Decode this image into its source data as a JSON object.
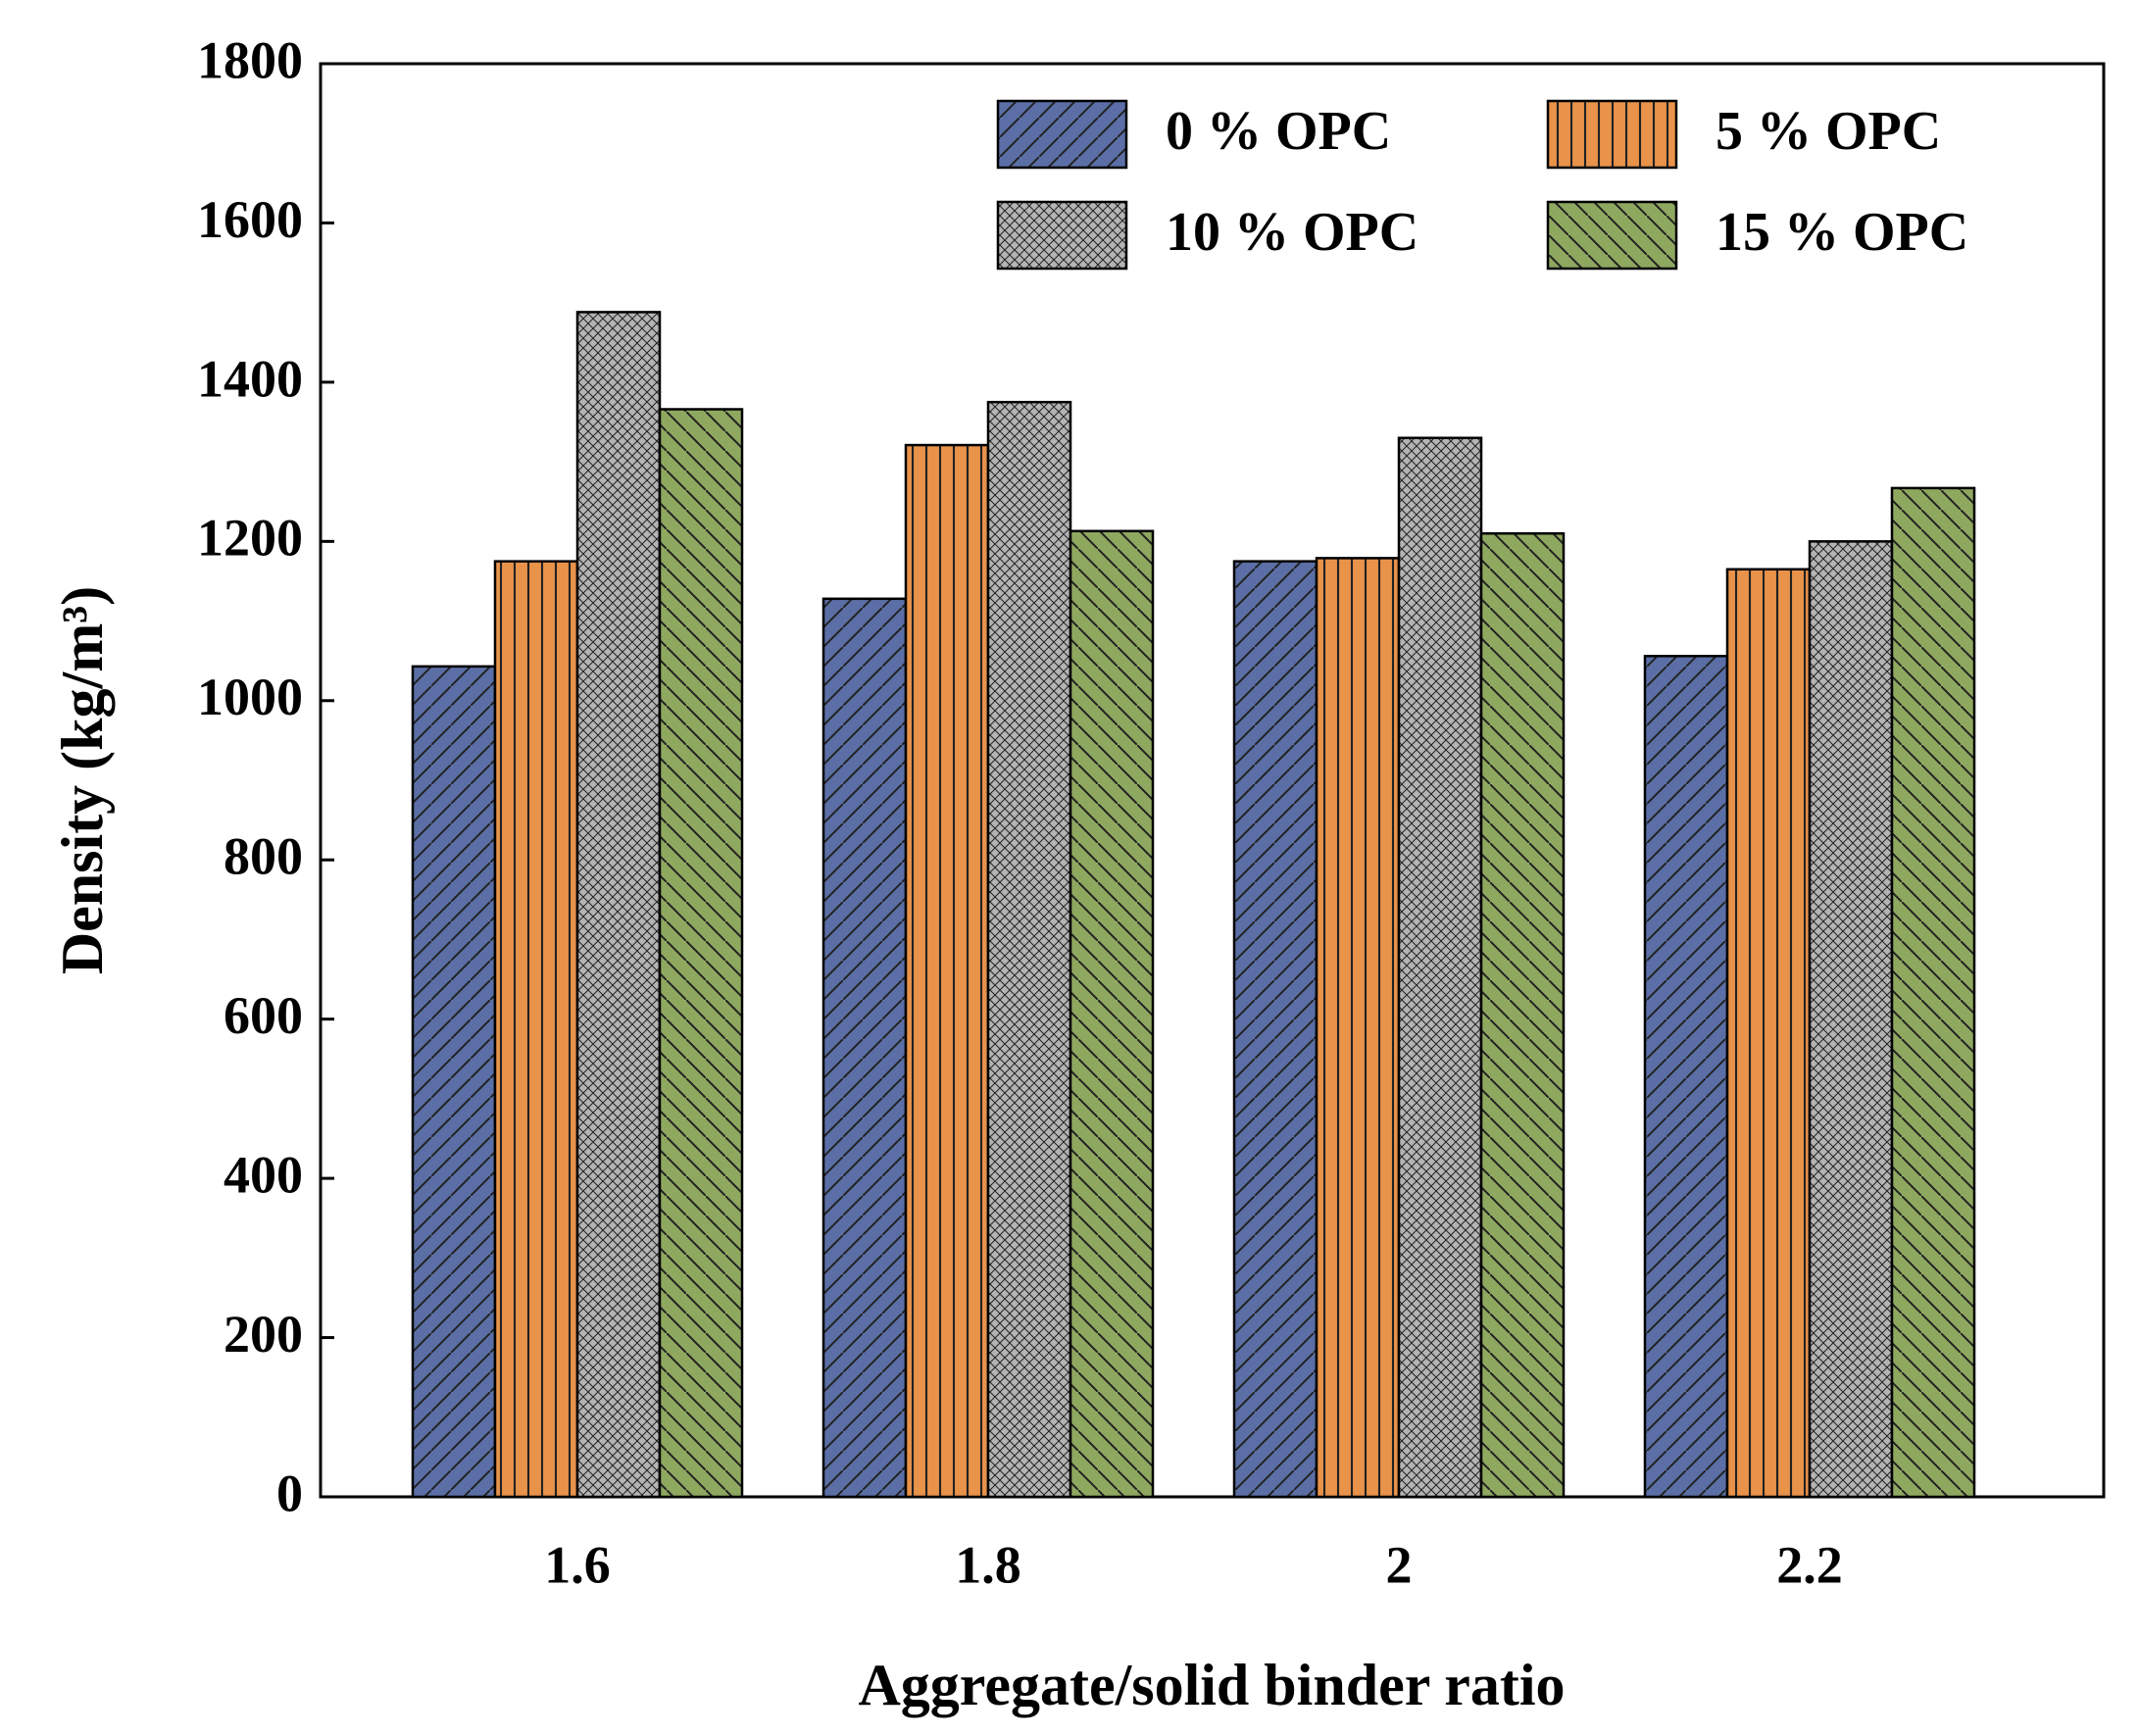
{
  "chart_data": {
    "type": "bar",
    "x_label": "Aggregate/solid binder ratio",
    "y_label": "Density (kg/m³)",
    "categories": [
      "1.6",
      "1.8",
      "2",
      "2.2"
    ],
    "series": [
      {
        "name": "0 % OPC",
        "color": "#5b6fa6",
        "pattern": "forward-diagonal",
        "values": [
          1043,
          1128,
          1175,
          1056
        ]
      },
      {
        "name": "5 % OPC",
        "color": "#e8924a",
        "pattern": "vertical",
        "values": [
          1175,
          1321,
          1179,
          1165
        ]
      },
      {
        "name": "10 % OPC",
        "color": "#b4b4b4",
        "pattern": "crosshatch",
        "values": [
          1488,
          1375,
          1330,
          1200
        ]
      },
      {
        "name": "15 % OPC",
        "color": "#8fa860",
        "pattern": "backward-diagonal",
        "values": [
          1366,
          1213,
          1210,
          1267
        ]
      }
    ],
    "ylim": [
      0,
      1800
    ],
    "yticks": [
      0,
      200,
      400,
      600,
      800,
      1000,
      1200,
      1400,
      1600,
      1800
    ],
    "grid": false,
    "legend": "upper right"
  }
}
